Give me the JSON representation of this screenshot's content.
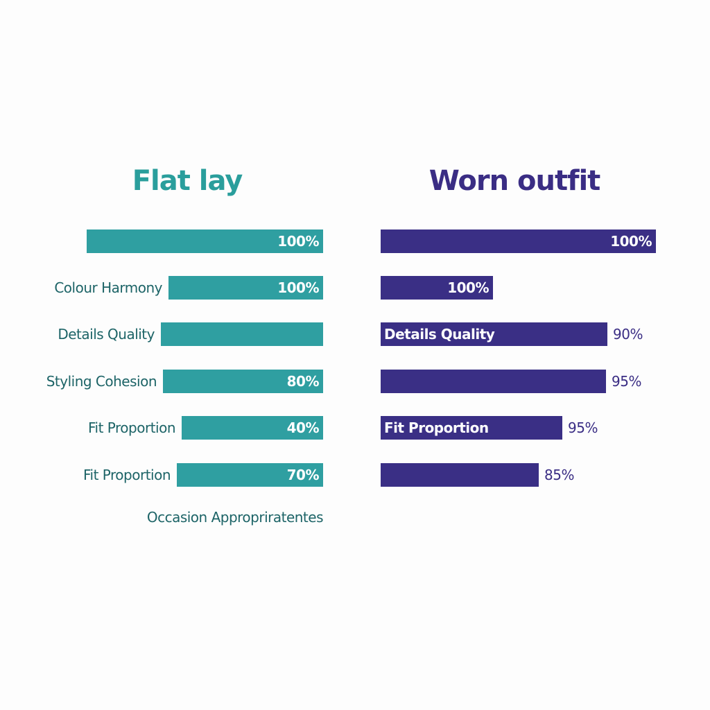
{
  "panels": [
    {
      "title": "Flat lay",
      "rows": [
        {
          "value": "100%"
        },
        {
          "label": "Colour Harmony",
          "value": "100%"
        },
        {
          "label": "Details Quality"
        },
        {
          "label": "Styling Cohesion",
          "value": "80%"
        },
        {
          "label": "Fit Proportion",
          "value": "40%"
        },
        {
          "label": "Fit Proportion",
          "value": "70%"
        }
      ],
      "footer": "Occasion Appropriratentes"
    },
    {
      "title": "Worn outfit",
      "rows": [
        {
          "value": "100%"
        },
        {
          "value": "100%"
        },
        {
          "label": "Details Quality",
          "value": "90%"
        },
        {
          "value": "95%"
        },
        {
          "label": "Fit Proportion",
          "value": "95%"
        },
        {
          "value": "85%"
        }
      ]
    }
  ]
}
